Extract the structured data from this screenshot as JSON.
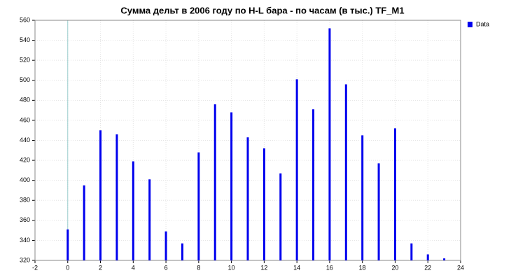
{
  "chart_data": {
    "type": "bar",
    "title": "Сумма дельт в 2006 году по H-L бара - по часам (в тыс.) TF_M1",
    "x": [
      0,
      1,
      2,
      3,
      4,
      5,
      6,
      7,
      8,
      9,
      10,
      11,
      12,
      13,
      14,
      15,
      16,
      17,
      18,
      19,
      20,
      21,
      22,
      23
    ],
    "series": [
      {
        "name": "Data",
        "color": "#0000ee",
        "values": [
          351,
          395,
          450,
          446,
          419,
          401,
          349,
          337,
          428,
          476,
          468,
          443,
          432,
          407,
          501,
          471,
          552,
          496,
          445,
          417,
          452,
          337,
          326,
          322
        ]
      }
    ],
    "xlim": [
      -2,
      24
    ],
    "xticks": [
      -2,
      0,
      2,
      4,
      6,
      8,
      10,
      12,
      14,
      16,
      18,
      20,
      22,
      24
    ],
    "ylim": [
      320,
      560
    ],
    "yticks": [
      320,
      340,
      360,
      380,
      400,
      420,
      440,
      460,
      480,
      500,
      520,
      540,
      560
    ],
    "grid": true,
    "legend": "top-right"
  }
}
